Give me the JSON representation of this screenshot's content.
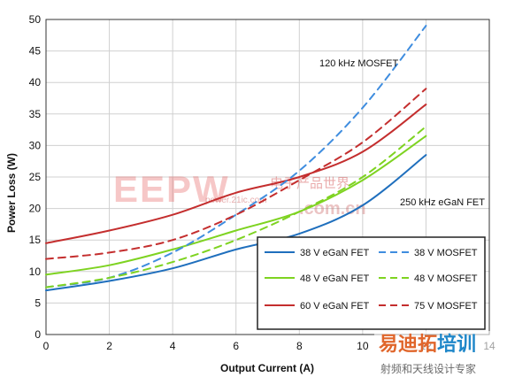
{
  "chart_data": {
    "type": "line",
    "xlabel": "Output Current (A)",
    "ylabel": "Power Loss (W)",
    "xlim": [
      0,
      14
    ],
    "ylim": [
      0,
      50
    ],
    "x_ticks": [
      0,
      2,
      4,
      6,
      8,
      10,
      12,
      14
    ],
    "y_ticks": [
      0,
      5,
      10,
      15,
      20,
      25,
      30,
      35,
      40,
      45,
      50
    ],
    "grid": true,
    "legend_position": "bottom-right",
    "annotations": [
      "120 kHz MOSFET",
      "250 kHz eGaN FET"
    ],
    "series": [
      {
        "name": "38 V eGaN FET",
        "color": "#1f6fbd",
        "dash": "solid",
        "x": [
          0,
          2,
          4,
          6,
          8,
          10,
          12
        ],
        "y": [
          7.0,
          8.5,
          10.5,
          13.5,
          16.0,
          20.5,
          28.5
        ]
      },
      {
        "name": "48 V eGaN FET",
        "color": "#7ed321",
        "dash": "solid",
        "x": [
          0,
          2,
          4,
          6,
          8,
          10,
          12
        ],
        "y": [
          9.5,
          11.0,
          13.5,
          16.5,
          19.5,
          24.5,
          31.5
        ]
      },
      {
        "name": "60 V eGaN FET",
        "color": "#c42e2e",
        "dash": "solid",
        "x": [
          0,
          2,
          4,
          6,
          8,
          10,
          12
        ],
        "y": [
          14.5,
          16.5,
          19.0,
          22.5,
          25.0,
          29.0,
          36.5
        ]
      },
      {
        "name": "38 V MOSFET",
        "color": "#3f8ddf",
        "dash": "dashed",
        "x": [
          0,
          2,
          4,
          6,
          8,
          10,
          12
        ],
        "y": [
          7.5,
          9.0,
          13.0,
          19.0,
          26.0,
          36.0,
          49.0
        ]
      },
      {
        "name": "48 V MOSFET",
        "color": "#7ed321",
        "dash": "dashed",
        "x": [
          0,
          2,
          4,
          6,
          8,
          10,
          12
        ],
        "y": [
          7.5,
          9.0,
          11.5,
          15.0,
          19.5,
          25.0,
          33.0
        ]
      },
      {
        "name": "75 V MOSFET",
        "color": "#c42e2e",
        "dash": "dashed",
        "x": [
          0,
          2,
          4,
          6,
          8,
          10,
          12
        ],
        "y": [
          12.0,
          13.0,
          15.0,
          19.0,
          24.5,
          30.5,
          39.0
        ]
      }
    ]
  },
  "watermark": {
    "logo": "EEPW",
    "cn_text": "电子产品世界",
    "url": "power.21ic.com",
    "com": ".com.cn"
  },
  "watermark2": {
    "top": "易迪拓培训",
    "bottom": "射频和天线设计专家"
  }
}
